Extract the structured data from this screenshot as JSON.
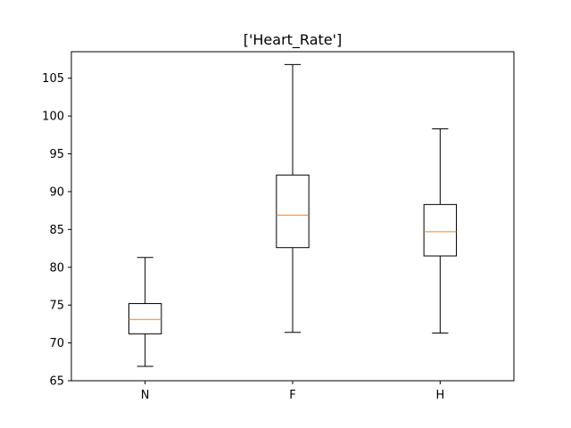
{
  "chart_data": {
    "type": "box",
    "title": "['Heart_Rate']",
    "xlabel": "",
    "ylabel": "",
    "categories": [
      "N",
      "F",
      "H"
    ],
    "ylim": [
      65,
      108.5
    ],
    "yticks": [
      65,
      70,
      75,
      80,
      85,
      90,
      95,
      100,
      105
    ],
    "grid": false,
    "boxes": [
      {
        "category": "N",
        "whisker_low": 66.9,
        "q1": 71.2,
        "median": 73.1,
        "q3": 75.2,
        "whisker_high": 81.3
      },
      {
        "category": "F",
        "whisker_low": 71.4,
        "q1": 82.6,
        "median": 86.9,
        "q3": 92.2,
        "whisker_high": 106.8
      },
      {
        "category": "H",
        "whisker_low": 71.3,
        "q1": 81.5,
        "median": 84.7,
        "q3": 88.3,
        "whisker_high": 98.3
      }
    ],
    "colors": {
      "box": "#000000",
      "median": "#ff7f0e"
    }
  }
}
